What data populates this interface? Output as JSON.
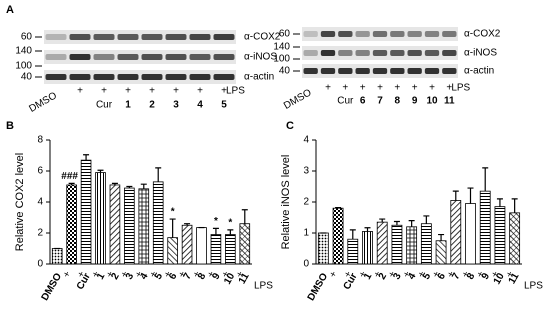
{
  "panel": "A",
  "blots": [
    {
      "markers": [
        60,
        140,
        100,
        40
      ],
      "antibodies": [
        "α-COX2",
        "α-iNOS",
        "α-actin"
      ],
      "control": "DMSO",
      "lps_row": [
        "+",
        "+",
        "+",
        "+",
        "+",
        "+",
        "+"
      ],
      "treatment_label": "LPS",
      "compounds": [
        "Cur",
        "1",
        "2",
        "3",
        "4",
        "5"
      ]
    },
    {
      "markers": [
        60,
        140,
        100,
        40
      ],
      "antibodies": [
        "α-COX2",
        "α-iNOS",
        "α-actin"
      ],
      "control": "DMSO",
      "lps_row": [
        "+",
        "+",
        "+",
        "+",
        "+",
        "+",
        "+",
        "+"
      ],
      "treatment_label": "LPS",
      "compounds": [
        "Cur",
        "6",
        "7",
        "8",
        "9",
        "10",
        "11"
      ]
    }
  ],
  "chart_data": [
    {
      "type": "bar",
      "panel": "B",
      "y_label": "Relative COX2 level",
      "categories": [
        "DMSO",
        null,
        "Cur",
        "1",
        "2",
        "3",
        "4",
        "5",
        "6",
        "7",
        "8",
        "9",
        "10",
        "11"
      ],
      "treatment_row": [
        null,
        "+",
        "+",
        "+",
        "+",
        "+",
        "+",
        "+",
        "+",
        "+",
        "+",
        "+",
        "+",
        "+"
      ],
      "treatment_label": "LPS",
      "values": [
        1.0,
        5.1,
        6.7,
        5.9,
        5.1,
        4.9,
        4.85,
        5.3,
        1.7,
        2.5,
        2.35,
        1.9,
        1.9,
        2.6
      ],
      "errors": [
        0,
        0.1,
        0.35,
        0.15,
        0.1,
        0.1,
        0.3,
        0.9,
        1.2,
        0.1,
        0,
        0.4,
        0.3,
        0.9
      ],
      "annotations": [
        null,
        "###",
        null,
        null,
        null,
        null,
        null,
        null,
        "*",
        null,
        null,
        "*",
        "*",
        null
      ],
      "ylim": [
        0,
        8
      ],
      "yticks": [
        0,
        2,
        4,
        6,
        8
      ],
      "color": "#000000"
    },
    {
      "type": "bar",
      "panel": "C",
      "y_label": "Relative iNOS level",
      "categories": [
        "DMSO",
        null,
        "Cur",
        "1",
        "2",
        "3",
        "4",
        "5",
        "6",
        "7",
        "8",
        "9",
        "10",
        "11"
      ],
      "treatment_row": [
        null,
        "+",
        "+",
        "+",
        "+",
        "+",
        "+",
        "+",
        "+",
        "+",
        "+",
        "+",
        "+",
        "+"
      ],
      "treatment_label": "LPS",
      "values": [
        1.0,
        1.8,
        0.8,
        1.05,
        1.35,
        1.25,
        1.2,
        1.3,
        0.75,
        2.05,
        1.95,
        2.35,
        1.85,
        1.65
      ],
      "errors": [
        0,
        0.02,
        0.3,
        0.12,
        0.1,
        0.12,
        0.2,
        0.25,
        0.2,
        0.3,
        0.5,
        0.75,
        0.25,
        0.45
      ],
      "ylim": [
        0,
        4
      ],
      "yticks": [
        0,
        1,
        2,
        3,
        4
      ],
      "color": "#000000"
    }
  ]
}
